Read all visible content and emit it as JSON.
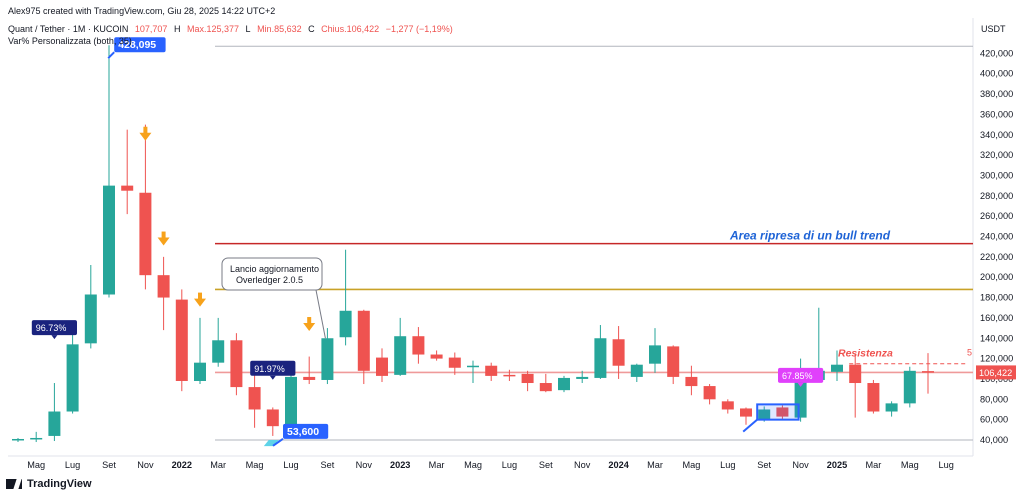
{
  "header": {
    "created_by": "Alex975 created with TradingView.com, Giu 28, 2025 14:22 UTC+2",
    "symbol": "Quant / Tether · 1M · KUCOIN",
    "ohlc_open": "107,707",
    "ohlc_high_label": "H",
    "ohlc_high": "Max.125,377",
    "ohlc_low_label": "L",
    "ohlc_low": "Min.85,632",
    "ohlc_close_label": "C",
    "ohlc_close": "Chius.106,422",
    "ohlc_change": "−1,277 (−1,19%)",
    "indicator": "Var% Personalizzata (both, 35)"
  },
  "branding": {
    "footer": "TradingView"
  },
  "colors": {
    "up": "#26a69a",
    "down": "#ef5350",
    "annotation_blue": "#2962ff",
    "annotation_navy": "#1a237e",
    "annotation_magenta": "#e040fb",
    "arrow": "#f7a21b"
  },
  "chart_data": {
    "type": "candlestick",
    "currency": "USDT",
    "ylim": [
      30000,
      440000
    ],
    "y_ticks": [
      40000,
      60000,
      80000,
      100000,
      120000,
      140000,
      160000,
      180000,
      200000,
      220000,
      240000,
      260000,
      280000,
      300000,
      320000,
      340000,
      360000,
      380000,
      400000,
      420000
    ],
    "y_tick_labels": [
      "40,000",
      "60,000",
      "80,000",
      "100,000",
      "120,000",
      "140,000",
      "160,000",
      "180,000",
      "200,000",
      "220,000",
      "240,000",
      "260,000",
      "280,000",
      "300,000",
      "320,000",
      "340,000",
      "360,000",
      "380,000",
      "400,000",
      "420,000"
    ],
    "x_labels": [
      {
        "index": 1,
        "label": "Mag"
      },
      {
        "index": 3,
        "label": "Lug"
      },
      {
        "index": 5,
        "label": "Set"
      },
      {
        "index": 7,
        "label": "Nov"
      },
      {
        "index": 9,
        "label": "2022"
      },
      {
        "index": 11,
        "label": "Mar"
      },
      {
        "index": 13,
        "label": "Mag"
      },
      {
        "index": 15,
        "label": "Lug"
      },
      {
        "index": 17,
        "label": "Set"
      },
      {
        "index": 19,
        "label": "Nov"
      },
      {
        "index": 21,
        "label": "2023"
      },
      {
        "index": 23,
        "label": "Mar"
      },
      {
        "index": 25,
        "label": "Mag"
      },
      {
        "index": 27,
        "label": "Lug"
      },
      {
        "index": 29,
        "label": "Set"
      },
      {
        "index": 31,
        "label": "Nov"
      },
      {
        "index": 33,
        "label": "2024"
      },
      {
        "index": 35,
        "label": "Mar"
      },
      {
        "index": 37,
        "label": "Mag"
      },
      {
        "index": 39,
        "label": "Lug"
      },
      {
        "index": 41,
        "label": "Set"
      },
      {
        "index": 43,
        "label": "Nov"
      },
      {
        "index": 45,
        "label": "2025"
      },
      {
        "index": 47,
        "label": "Mar"
      },
      {
        "index": 49,
        "label": "Mag"
      },
      {
        "index": 51,
        "label": "Lug"
      }
    ],
    "candles": [
      {
        "o": 40000,
        "h": 42000,
        "l": 38000,
        "c": 41000
      },
      {
        "o": 41000,
        "h": 48000,
        "l": 38000,
        "c": 42000
      },
      {
        "o": 44000,
        "h": 96000,
        "l": 39000,
        "c": 68000
      },
      {
        "o": 68000,
        "h": 145000,
        "l": 66000,
        "c": 134000
      },
      {
        "o": 135000,
        "h": 212000,
        "l": 130000,
        "c": 183000
      },
      {
        "o": 183000,
        "h": 428000,
        "l": 180000,
        "c": 290000
      },
      {
        "o": 290000,
        "h": 345000,
        "l": 262000,
        "c": 285000
      },
      {
        "o": 283000,
        "h": 350000,
        "l": 188000,
        "c": 202000
      },
      {
        "o": 202000,
        "h": 220000,
        "l": 148000,
        "c": 180000
      },
      {
        "o": 178000,
        "h": 188000,
        "l": 88000,
        "c": 98000
      },
      {
        "o": 98000,
        "h": 160000,
        "l": 95000,
        "c": 116000
      },
      {
        "o": 116000,
        "h": 160000,
        "l": 112000,
        "c": 138000
      },
      {
        "o": 138000,
        "h": 145000,
        "l": 84000,
        "c": 92000
      },
      {
        "o": 92000,
        "h": 105000,
        "l": 52000,
        "c": 70000
      },
      {
        "o": 70000,
        "h": 72000,
        "l": 44000,
        "c": 53600
      },
      {
        "o": 53600,
        "h": 108000,
        "l": 52000,
        "c": 102000
      },
      {
        "o": 102000,
        "h": 122000,
        "l": 95000,
        "c": 99000
      },
      {
        "o": 99000,
        "h": 150000,
        "l": 95000,
        "c": 140000
      },
      {
        "o": 141000,
        "h": 227000,
        "l": 133000,
        "c": 167000
      },
      {
        "o": 167000,
        "h": 168000,
        "l": 95000,
        "c": 108000
      },
      {
        "o": 121000,
        "h": 130000,
        "l": 97000,
        "c": 103000
      },
      {
        "o": 104000,
        "h": 160000,
        "l": 103000,
        "c": 142000
      },
      {
        "o": 142000,
        "h": 151000,
        "l": 115000,
        "c": 124000
      },
      {
        "o": 124000,
        "h": 128000,
        "l": 118000,
        "c": 120000
      },
      {
        "o": 121000,
        "h": 126000,
        "l": 104000,
        "c": 111000
      },
      {
        "o": 112000,
        "h": 118000,
        "l": 96000,
        "c": 113000
      },
      {
        "o": 113000,
        "h": 116000,
        "l": 98000,
        "c": 103000
      },
      {
        "o": 104000,
        "h": 109000,
        "l": 98000,
        "c": 103000
      },
      {
        "o": 105000,
        "h": 108000,
        "l": 88000,
        "c": 96000
      },
      {
        "o": 96000,
        "h": 105000,
        "l": 87000,
        "c": 88000
      },
      {
        "o": 89000,
        "h": 103000,
        "l": 87000,
        "c": 101000
      },
      {
        "o": 100000,
        "h": 108000,
        "l": 96000,
        "c": 102000
      },
      {
        "o": 101000,
        "h": 153000,
        "l": 100000,
        "c": 140000
      },
      {
        "o": 139000,
        "h": 152000,
        "l": 100000,
        "c": 113000
      },
      {
        "o": 102000,
        "h": 115000,
        "l": 97000,
        "c": 114000
      },
      {
        "o": 115000,
        "h": 150000,
        "l": 106000,
        "c": 133000
      },
      {
        "o": 132000,
        "h": 133000,
        "l": 95000,
        "c": 102000
      },
      {
        "o": 102000,
        "h": 113000,
        "l": 84000,
        "c": 93000
      },
      {
        "o": 93000,
        "h": 95000,
        "l": 75000,
        "c": 80000
      },
      {
        "o": 78000,
        "h": 80000,
        "l": 66000,
        "c": 70000
      },
      {
        "o": 71000,
        "h": 72000,
        "l": 55000,
        "c": 63000
      },
      {
        "o": 60000,
        "h": 73000,
        "l": 58000,
        "c": 70000
      },
      {
        "o": 72000,
        "h": 74000,
        "l": 60000,
        "c": 63000
      },
      {
        "o": 62000,
        "h": 120000,
        "l": 58000,
        "c": 100000
      },
      {
        "o": 99000,
        "h": 170000,
        "l": 97000,
        "c": 108000
      },
      {
        "o": 107000,
        "h": 128000,
        "l": 98000,
        "c": 114000
      },
      {
        "o": 114000,
        "h": 125000,
        "l": 62000,
        "c": 96000
      },
      {
        "o": 96000,
        "h": 99000,
        "l": 66000,
        "c": 68000
      },
      {
        "o": 68000,
        "h": 78000,
        "l": 63000,
        "c": 76000
      },
      {
        "o": 76000,
        "h": 112000,
        "l": 72000,
        "c": 108000
      },
      {
        "o": 107707,
        "h": 125377,
        "l": 85632,
        "c": 106422
      }
    ],
    "hlines": [
      {
        "y": 427000,
        "color": "#b2b5be"
      },
      {
        "y": 233000,
        "color": "#c62828"
      },
      {
        "y": 188000,
        "color": "#c9a227"
      },
      {
        "y": 40000,
        "color": "#b2b5be"
      },
      {
        "y": 106422,
        "color": "#ef9a9a"
      }
    ],
    "resistance_line": {
      "y": 115000,
      "from_index": 46
    },
    "price_tag": {
      "value": "106,422"
    },
    "texts": {
      "bull_area": "Area ripresa di un bull trend",
      "resistance": "Resistenza",
      "resistance_edge": "5",
      "callout": [
        "Lancio aggiornamento",
        "Overledger 2.0.5"
      ]
    },
    "callout_target": {
      "index": 17,
      "y": 140000
    },
    "arrows": [
      {
        "index": 7,
        "y": 340000
      },
      {
        "index": 8,
        "y": 237000
      },
      {
        "index": 10,
        "y": 177000
      },
      {
        "index": 16,
        "y": 153000
      }
    ],
    "labels": [
      {
        "text": "96.73%",
        "index": 2,
        "y": 150000,
        "color": "#1a237e"
      },
      {
        "text": "91.97%",
        "index": 14,
        "y": 110000,
        "color": "#1a237e"
      },
      {
        "text": "67.85%",
        "index": 43,
        "y": 103000,
        "color": "#e040fb"
      },
      {
        "text": "428,095",
        "index": 6,
        "y": 428000,
        "color": "#2962ff"
      },
      {
        "text": "53,600",
        "index": 15,
        "y": 48000,
        "color": "#2962ff"
      }
    ],
    "range_boxes": [
      {
        "from_index": 41,
        "to_index": 43,
        "y_top": 75000,
        "y_bottom": 60000,
        "color": "#2962ff"
      }
    ]
  }
}
